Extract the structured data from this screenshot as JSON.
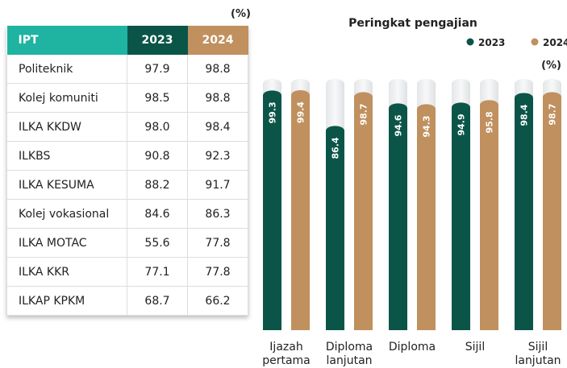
{
  "table": {
    "unit": "(%)",
    "header": [
      "IPT",
      "2023",
      "2024"
    ],
    "rows": [
      [
        "Politeknik",
        "97.9",
        "98.8"
      ],
      [
        "Kolej komuniti",
        "98.5",
        "98.8"
      ],
      [
        "ILKA KKDW",
        "98.0",
        "98.4"
      ],
      [
        "ILKBS",
        "90.8",
        "92.3"
      ],
      [
        "ILKA KESUMA",
        "88.2",
        "91.7"
      ],
      [
        "Kolej vokasional",
        "84.6",
        "86.3"
      ],
      [
        "ILKA MOTAC",
        "55.6",
        "77.8"
      ],
      [
        "ILKA KKR",
        "77.1",
        "77.8"
      ],
      [
        "ILKAP KPKM",
        "68.7",
        "66.2"
      ]
    ]
  },
  "chart_data": {
    "type": "bar",
    "title": "Peringkat pengajian",
    "unit": "(%)",
    "categories": [
      "Ijazah pertama",
      "Diploma lanjutan",
      "Diploma",
      "Sijil",
      "Sijil lanjutan"
    ],
    "series": [
      {
        "name": "2023",
        "color": "#0b5548",
        "values": [
          99.3,
          86.4,
          94.6,
          94.9,
          98.4
        ]
      },
      {
        "name": "2024",
        "color": "#c0905e",
        "values": [
          99.4,
          98.7,
          94.3,
          95.8,
          98.7
        ]
      }
    ],
    "ylim": [
      12,
      100
    ],
    "legend": "top-right"
  }
}
